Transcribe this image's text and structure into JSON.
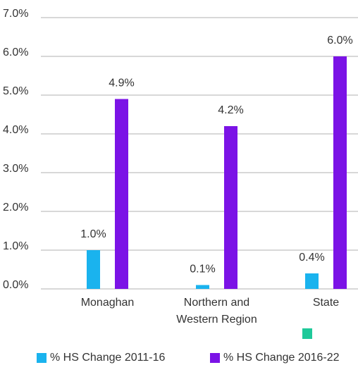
{
  "chart_data": {
    "type": "bar",
    "categories": [
      "Monaghan",
      "Northern and Western Region",
      "State"
    ],
    "series": [
      {
        "name": "% HS Change 2011-16",
        "color": "#1ab3ee",
        "values": [
          1.0,
          0.1,
          0.4
        ],
        "value_labels": [
          "1.0%",
          "0.1%",
          "0.4%"
        ]
      },
      {
        "name": "% HS Change 2016-22",
        "color": "#7b13e6",
        "values": [
          4.9,
          4.2,
          6.0
        ],
        "value_labels": [
          "4.9%",
          "4.2%",
          "6.0%"
        ]
      }
    ],
    "ylim": [
      0,
      7
    ],
    "yticks": [
      {
        "value": 0,
        "label": "0.0%"
      },
      {
        "value": 1,
        "label": "1.0%"
      },
      {
        "value": 2,
        "label": "2.0%"
      },
      {
        "value": 3,
        "label": "3.0%"
      },
      {
        "value": 4,
        "label": "4.0%"
      },
      {
        "value": 5,
        "label": "5.0%"
      },
      {
        "value": 6,
        "label": "6.0%"
      },
      {
        "value": 7,
        "label": "7.0%"
      }
    ],
    "grid": true
  }
}
